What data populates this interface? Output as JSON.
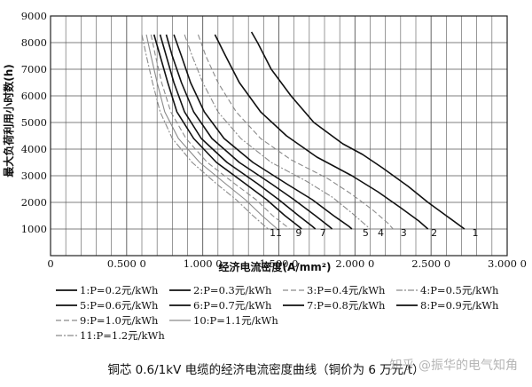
{
  "chart_data": {
    "type": "line",
    "ylabel": "最大负荷利用小时数(h)",
    "xlabel": "经济电流密度(A/mm²)",
    "xlim": [
      0,
      3.0
    ],
    "ylim": [
      0,
      9000
    ],
    "x_ticks": [
      "0",
      "0.500 0",
      "1.000 0",
      "1.500 0",
      "2.000 0",
      "2.500 0",
      "3.000 0"
    ],
    "y_ticks": [
      "1000",
      "2000",
      "3000",
      "4000",
      "5000",
      "6000",
      "7000",
      "8000",
      "9000"
    ],
    "grid": true,
    "series": [
      {
        "id": "1",
        "label": "1:P=0.2元/kWh",
        "style": "solid-black",
        "points": [
          [
            1.32,
            8400
          ],
          [
            1.36,
            8000
          ],
          [
            1.45,
            7000
          ],
          [
            1.58,
            6000
          ],
          [
            1.73,
            5000
          ],
          [
            1.92,
            4200
          ],
          [
            2.05,
            3800
          ],
          [
            2.18,
            3300
          ],
          [
            2.35,
            2600
          ],
          [
            2.48,
            2000
          ],
          [
            2.6,
            1500
          ],
          [
            2.72,
            1000
          ]
        ]
      },
      {
        "id": "2",
        "label": "2:P=0.3元/kWh",
        "style": "solid-black",
        "points": [
          [
            1.08,
            8300
          ],
          [
            1.15,
            7500
          ],
          [
            1.24,
            6500
          ],
          [
            1.38,
            5400
          ],
          [
            1.55,
            4500
          ],
          [
            1.75,
            3700
          ],
          [
            1.98,
            3000
          ],
          [
            2.15,
            2400
          ],
          [
            2.3,
            1800
          ],
          [
            2.42,
            1300
          ],
          [
            2.48,
            1000
          ]
        ]
      },
      {
        "id": "3",
        "label": "3:P=0.4元/kWh",
        "style": "dash-gray",
        "points": [
          [
            0.97,
            8300
          ],
          [
            1.02,
            7500
          ],
          [
            1.1,
            6500
          ],
          [
            1.22,
            5400
          ],
          [
            1.38,
            4400
          ],
          [
            1.58,
            3600
          ],
          [
            1.82,
            2900
          ],
          [
            1.98,
            2300
          ],
          [
            2.12,
            1700
          ],
          [
            2.22,
            1200
          ],
          [
            2.25,
            1000
          ]
        ]
      },
      {
        "id": "4",
        "label": "4:P=0.5元/kWh",
        "style": "dashdot-gray",
        "points": [
          [
            0.88,
            8300
          ],
          [
            0.93,
            7500
          ],
          [
            1.0,
            6500
          ],
          [
            1.1,
            5400
          ],
          [
            1.25,
            4400
          ],
          [
            1.45,
            3500
          ],
          [
            1.68,
            2800
          ],
          [
            1.85,
            2200
          ],
          [
            1.98,
            1600
          ],
          [
            2.08,
            1100
          ],
          [
            2.1,
            1000
          ]
        ]
      },
      {
        "id": "5",
        "label": "5:P=0.6元/kWh",
        "style": "solid-black",
        "points": [
          [
            0.81,
            8300
          ],
          [
            0.86,
            7500
          ],
          [
            0.92,
            6500
          ],
          [
            1.01,
            5400
          ],
          [
            1.14,
            4400
          ],
          [
            1.33,
            3500
          ],
          [
            1.55,
            2700
          ],
          [
            1.72,
            2100
          ],
          [
            1.86,
            1500
          ],
          [
            1.96,
            1100
          ],
          [
            1.98,
            1000
          ]
        ]
      },
      {
        "id": "6",
        "label": "6:P=0.7元/kWh",
        "style": "solid-black",
        "points": [
          [
            0.76,
            8300
          ],
          [
            0.8,
            7500
          ],
          [
            0.86,
            6500
          ],
          [
            0.94,
            5400
          ],
          [
            1.06,
            4400
          ],
          [
            1.24,
            3500
          ],
          [
            1.45,
            2700
          ],
          [
            1.6,
            2100
          ],
          [
            1.74,
            1500
          ],
          [
            1.83,
            1100
          ],
          [
            1.85,
            1000
          ]
        ]
      },
      {
        "id": "7",
        "label": "7:P=0.8元/kWh",
        "style": "solid-black",
        "points": [
          [
            0.72,
            8300
          ],
          [
            0.76,
            7500
          ],
          [
            0.81,
            6500
          ],
          [
            0.88,
            5400
          ],
          [
            0.99,
            4400
          ],
          [
            1.16,
            3500
          ],
          [
            1.36,
            2700
          ],
          [
            1.5,
            2100
          ],
          [
            1.63,
            1500
          ],
          [
            1.72,
            1100
          ],
          [
            1.74,
            1000
          ]
        ]
      },
      {
        "id": "8",
        "label": "8:P=0.9元/kWh",
        "style": "solid-black",
        "points": [
          [
            0.68,
            8300
          ],
          [
            0.72,
            7500
          ],
          [
            0.77,
            6500
          ],
          [
            0.83,
            5400
          ],
          [
            0.94,
            4400
          ],
          [
            1.09,
            3500
          ],
          [
            1.28,
            2700
          ],
          [
            1.42,
            2100
          ],
          [
            1.54,
            1500
          ],
          [
            1.63,
            1100
          ],
          [
            1.65,
            1000
          ]
        ]
      },
      {
        "id": "9",
        "label": "9:P=1.0元/kWh",
        "style": "dash-gray",
        "points": [
          [
            0.66,
            8300
          ],
          [
            0.69,
            7500
          ],
          [
            0.73,
            6500
          ],
          [
            0.79,
            5400
          ],
          [
            0.89,
            4400
          ],
          [
            1.03,
            3500
          ],
          [
            1.21,
            2700
          ],
          [
            1.35,
            2100
          ],
          [
            1.46,
            1500
          ],
          [
            1.55,
            1100
          ],
          [
            1.57,
            1000
          ]
        ]
      },
      {
        "id": "10",
        "label": "10:P=1.1元/kWh",
        "style": "solid-gray",
        "points": [
          [
            0.63,
            8300
          ],
          [
            0.66,
            7500
          ],
          [
            0.7,
            6500
          ],
          [
            0.75,
            5400
          ],
          [
            0.84,
            4400
          ],
          [
            0.98,
            3500
          ],
          [
            1.15,
            2700
          ],
          [
            1.28,
            2100
          ],
          [
            1.39,
            1500
          ],
          [
            1.47,
            1100
          ],
          [
            1.49,
            1000
          ]
        ]
      },
      {
        "id": "11",
        "label": "11:P=1.2元/kWh",
        "style": "dashdot-gray",
        "points": [
          [
            0.6,
            8300
          ],
          [
            0.63,
            7500
          ],
          [
            0.67,
            6500
          ],
          [
            0.72,
            5400
          ],
          [
            0.8,
            4400
          ],
          [
            0.93,
            3500
          ],
          [
            1.09,
            2700
          ],
          [
            1.22,
            2100
          ],
          [
            1.33,
            1500
          ],
          [
            1.41,
            1100
          ],
          [
            1.43,
            1000
          ]
        ]
      }
    ],
    "curve_end_labels": [
      {
        "text": "1",
        "x": 2.79,
        "y": 860
      },
      {
        "text": "2",
        "x": 2.52,
        "y": 860
      },
      {
        "text": "3",
        "x": 2.32,
        "y": 860
      },
      {
        "text": "4",
        "x": 2.17,
        "y": 860
      },
      {
        "text": "5",
        "x": 2.07,
        "y": 860
      },
      {
        "text": "7",
        "x": 1.79,
        "y": 860
      },
      {
        "text": "9",
        "x": 1.63,
        "y": 860
      },
      {
        "text": "11",
        "x": 1.48,
        "y": 860
      }
    ]
  },
  "legend_rows": [
    [
      {
        "swatch": "solid-black",
        "label": "1:P=0.2元/kWh"
      },
      {
        "swatch": "solid-black",
        "label": "2:P=0.3元/kWh"
      },
      {
        "swatch": "dash-gray",
        "label": "3:P=0.4元/kWh"
      },
      {
        "swatch": "dashdot-gray",
        "label": "4:P=0.5元/kWh"
      }
    ],
    [
      {
        "swatch": "solid-black",
        "label": "5:P=0.6元/kWh"
      },
      {
        "swatch": "solid-black",
        "label": "6:P=0.7元/kWh"
      },
      {
        "swatch": "solid-black",
        "label": "7:P=0.8元/kWh"
      },
      {
        "swatch": "solid-black",
        "label": "8:P=0.9元/kWh"
      }
    ],
    [
      {
        "swatch": "dash-gray",
        "label": "9:P=1.0元/kWh"
      },
      {
        "swatch": "solid-gray",
        "label": "10:P=1.1元/kWh"
      }
    ],
    [
      {
        "swatch": "dashdot-gray",
        "label": "11:P=1.2元/kWh"
      }
    ]
  ],
  "caption": "铜芯 0.6/1kV 电缆的经济电流密度曲线（铜价为 6 万元/t）",
  "watermark": "知乎 @振华的电气知角",
  "colors": {
    "black": "#111111",
    "gray": "#8a8a8a",
    "grid": "#555555"
  }
}
